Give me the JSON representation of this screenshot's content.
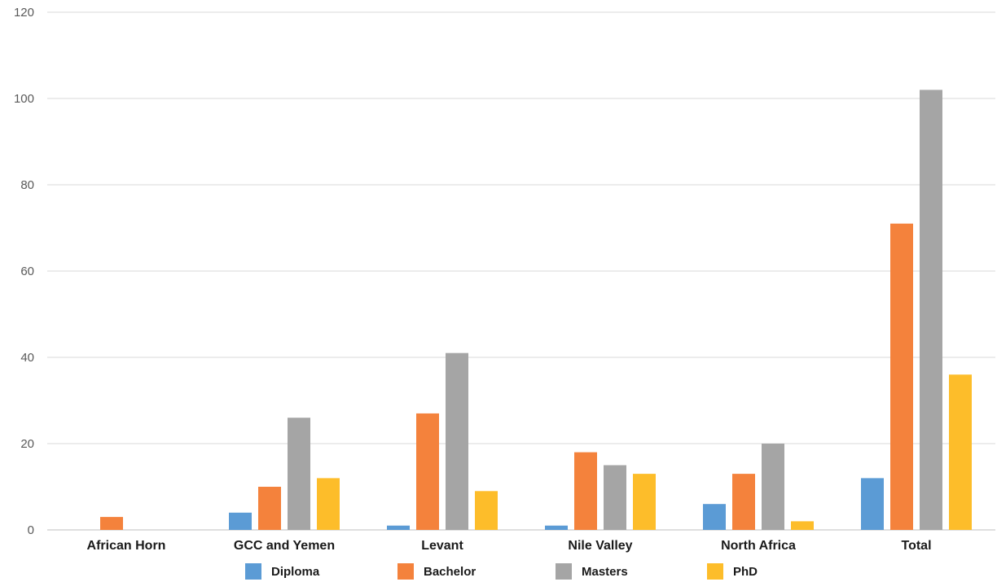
{
  "chart_data": {
    "type": "bar",
    "title": "",
    "xlabel": "",
    "ylabel": "",
    "categories": [
      "African Horn",
      "GCC and Yemen",
      "Levant",
      "Nile Valley",
      "North Africa",
      "Total"
    ],
    "series": [
      {
        "name": "Diploma",
        "color": "#5b9bd5",
        "values": [
          0,
          4,
          1,
          1,
          6,
          12
        ]
      },
      {
        "name": "Bachelor",
        "color": "#f4823c",
        "values": [
          3,
          10,
          27,
          18,
          13,
          71
        ]
      },
      {
        "name": "Masters",
        "color": "#a5a5a5",
        "values": [
          0,
          26,
          41,
          15,
          20,
          102
        ]
      },
      {
        "name": "PhD",
        "color": "#fdbd2a",
        "values": [
          0,
          12,
          9,
          13,
          2,
          36
        ]
      }
    ],
    "ylim": [
      0,
      120
    ],
    "yticks": [
      0,
      20,
      40,
      60,
      80,
      100,
      120
    ],
    "grid": true,
    "legend_position": "bottom"
  }
}
